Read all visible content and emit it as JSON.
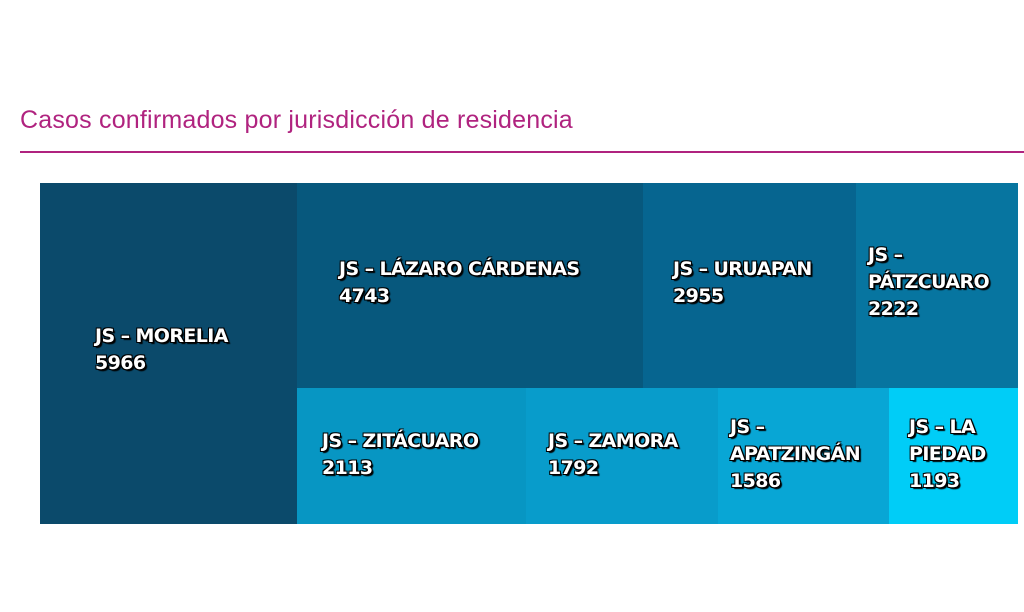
{
  "chart_data": {
    "type": "treemap",
    "title": "Casos confirmados por jurisdicción de residencia",
    "items": [
      {
        "name": "JS – MORELIA",
        "value": 5966,
        "color": "#0b4a6b"
      },
      {
        "name": "JS – LÁZARO CÁRDENAS",
        "value": 4743,
        "color": "#07587d"
      },
      {
        "name": "JS – URUAPAN",
        "value": 2955,
        "color": "#066590"
      },
      {
        "name": "JS – PÁTZCUARO",
        "value": 2222,
        "color": "#0775a0"
      },
      {
        "name": "JS – ZITÁCUARO",
        "value": 2113,
        "color": "#0796c3"
      },
      {
        "name": "JS – ZAMORA",
        "value": 1792,
        "color": "#089ccb"
      },
      {
        "name": "JS – APATZINGÁN",
        "value": 1586,
        "color": "#08a6d5"
      },
      {
        "name": "JS – LA PIEDAD",
        "value": 1193,
        "color": "#00cdf7"
      }
    ]
  }
}
